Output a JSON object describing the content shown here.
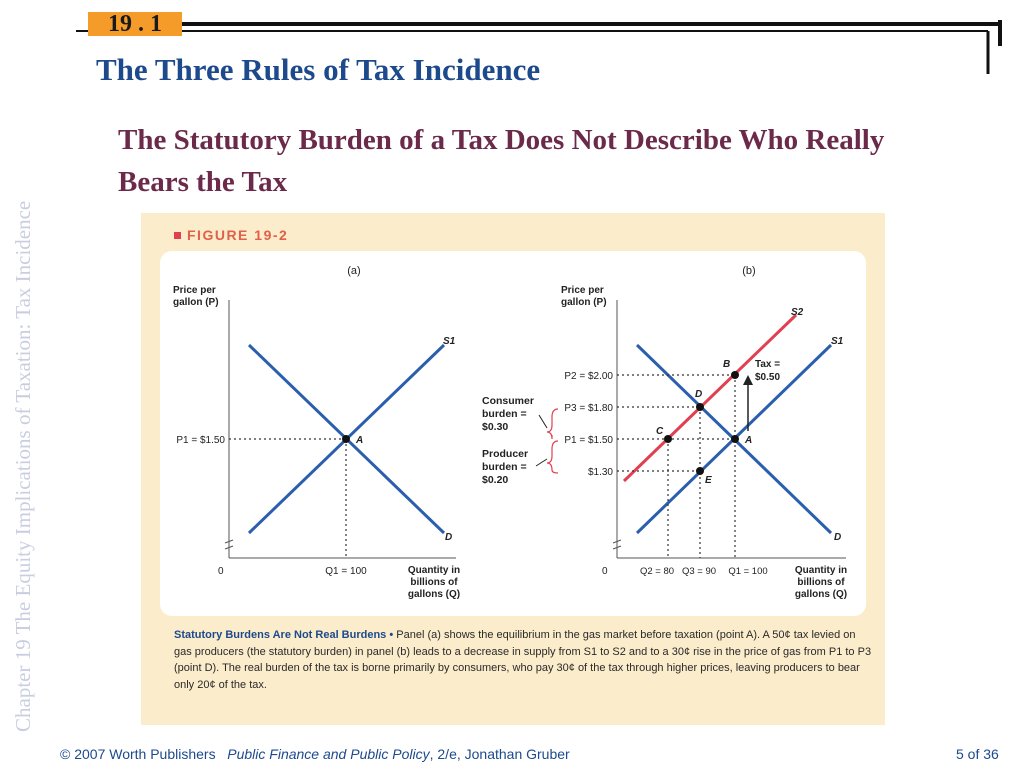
{
  "header": {
    "section_number": "19 . 1",
    "title": "The Three Rules of Tax Incidence",
    "subtitle": "The Statutory Burden of a Tax Does Not Describe Who Really Bears the Tax"
  },
  "sidebar": {
    "vertical_text": "Chapter 19  The Equity Implications of Taxation: Tax Incidence"
  },
  "figure": {
    "label": "FIGURE 19-2",
    "panel_a": {
      "label": "(a)",
      "y_axis_label": [
        "Price per",
        "gallon (P)"
      ],
      "x_axis_label": [
        "Quantity in",
        "billions of",
        "gallons (Q)"
      ],
      "origin": "0",
      "price_label": "P1 = $1.50",
      "quantity_label": "Q1 = 100",
      "supply_label": "S1",
      "demand_label": "D",
      "point_label": "A"
    },
    "panel_b": {
      "label": "(b)",
      "y_axis_label": [
        "Price per",
        "gallon (P)"
      ],
      "x_axis_label": [
        "Quantity in",
        "billions of",
        "gallons (Q)"
      ],
      "origin": "0",
      "price_labels": [
        "P2 = $2.00",
        "P3 = $1.80",
        "P1 = $1.50",
        "$1.30"
      ],
      "quantity_labels": [
        "Q2 = 80",
        "Q3 = 90",
        "Q1 = 100"
      ],
      "supply_labels": [
        "S2",
        "S1"
      ],
      "demand_label": "D",
      "point_labels": [
        "B",
        "D",
        "C",
        "A",
        "E"
      ],
      "tax_label": [
        "Tax =",
        "$0.50"
      ],
      "consumer_burden": [
        "Consumer",
        "burden =",
        "$0.30"
      ],
      "producer_burden": [
        "Producer",
        "burden =",
        "$0.20"
      ]
    },
    "caption": {
      "lead": "Statutory Burdens Are Not Real Burdens •",
      "body": "Panel (a) shows the equilibrium in the gas market before taxation (point A). A 50¢ tax levied on gas producers (the statutory burden) in panel (b) leads to a decrease in supply from S1 to S2 and to a 30¢ rise in the price of gas from P1 to P3 (point D). The real burden of the tax is borne primarily by consumers, who pay 30¢ of the tax through higher prices, leaving producers to bear only 20¢ of the tax."
    }
  },
  "footer": {
    "copyright": "© 2007 Worth Publishers",
    "book": "Public Finance and Public Policy",
    "edition": ", 2/e, Jonathan Gruber",
    "page": "5 of 36"
  },
  "colors": {
    "title_blue": "#1d4a8c",
    "subtitle_maroon": "#6b2a4a",
    "section_orange": "#f59b2a",
    "curve_blue": "#2b5fae",
    "tax_curve_red": "#e04050",
    "bracket_red": "#e04050",
    "figure_bg": "#fbeccb"
  }
}
